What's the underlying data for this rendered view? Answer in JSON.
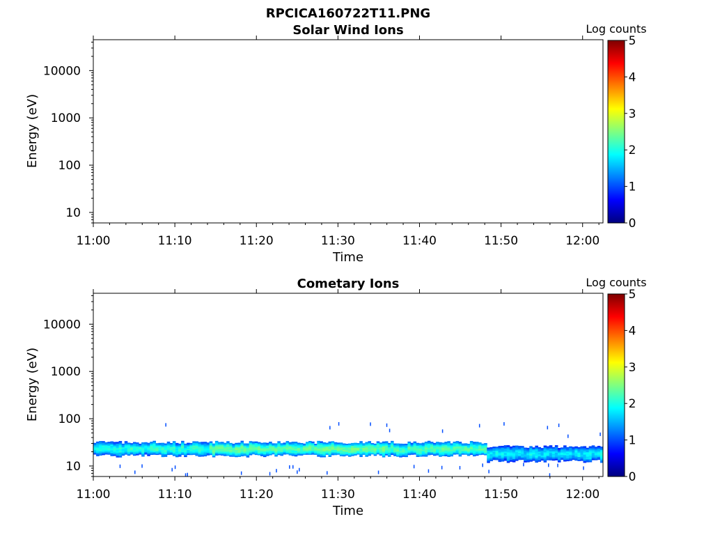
{
  "figure_title": "RPCICA160722T11.PNG",
  "chart_data": [
    {
      "type": "heatmap",
      "title": "Solar Wind Ions",
      "xlabel": "Time",
      "ylabel": "Energy (eV)",
      "x_ticks": [
        "11:00",
        "11:10",
        "11:20",
        "11:30",
        "11:40",
        "11:50",
        "12:00"
      ],
      "x_range_minutes": [
        0,
        62.5
      ],
      "y_scale": "log",
      "y_ticks": [
        10,
        100,
        1000,
        10000
      ],
      "y_tick_labels": [
        "10",
        "100",
        "1000",
        "10000"
      ],
      "y_range": [
        6,
        45000
      ],
      "colorbar": {
        "label": "Log counts",
        "range": [
          0,
          5
        ],
        "ticks": [
          "0",
          "1",
          "2",
          "3",
          "4",
          "5"
        ],
        "colormap": "jet"
      },
      "grid": false,
      "band": null
    },
    {
      "type": "heatmap",
      "title": "Cometary Ions",
      "xlabel": "Time",
      "ylabel": "Energy (eV)",
      "x_ticks": [
        "11:00",
        "11:10",
        "11:20",
        "11:30",
        "11:40",
        "11:50",
        "12:00"
      ],
      "x_range_minutes": [
        0,
        62.5
      ],
      "y_scale": "log",
      "y_ticks": [
        10,
        100,
        1000,
        10000
      ],
      "y_tick_labels": [
        "10",
        "100",
        "1000",
        "10000"
      ],
      "y_range": [
        6,
        45000
      ],
      "colorbar": {
        "label": "Log counts",
        "range": [
          0,
          5
        ],
        "ticks": [
          "0",
          "1",
          "2",
          "3",
          "4",
          "5"
        ],
        "colormap": "jet"
      },
      "grid": false,
      "band": {
        "segments": [
          {
            "t_start_min": 0,
            "t_end_min": 48,
            "energy_low_eV": 17,
            "energy_high_eV": 32,
            "peak_log_counts_start": 2.0,
            "peak_log_counts_end": 2.3
          },
          {
            "t_start_min": 48,
            "t_end_min": 62.5,
            "energy_low_eV": 13,
            "energy_high_eV": 26,
            "peak_log_counts_start": 1.8,
            "peak_log_counts_end": 1.8
          }
        ],
        "peak_log_counts_max": 2.5,
        "note_times_min_highest": [
          20,
          30
        ]
      }
    }
  ]
}
